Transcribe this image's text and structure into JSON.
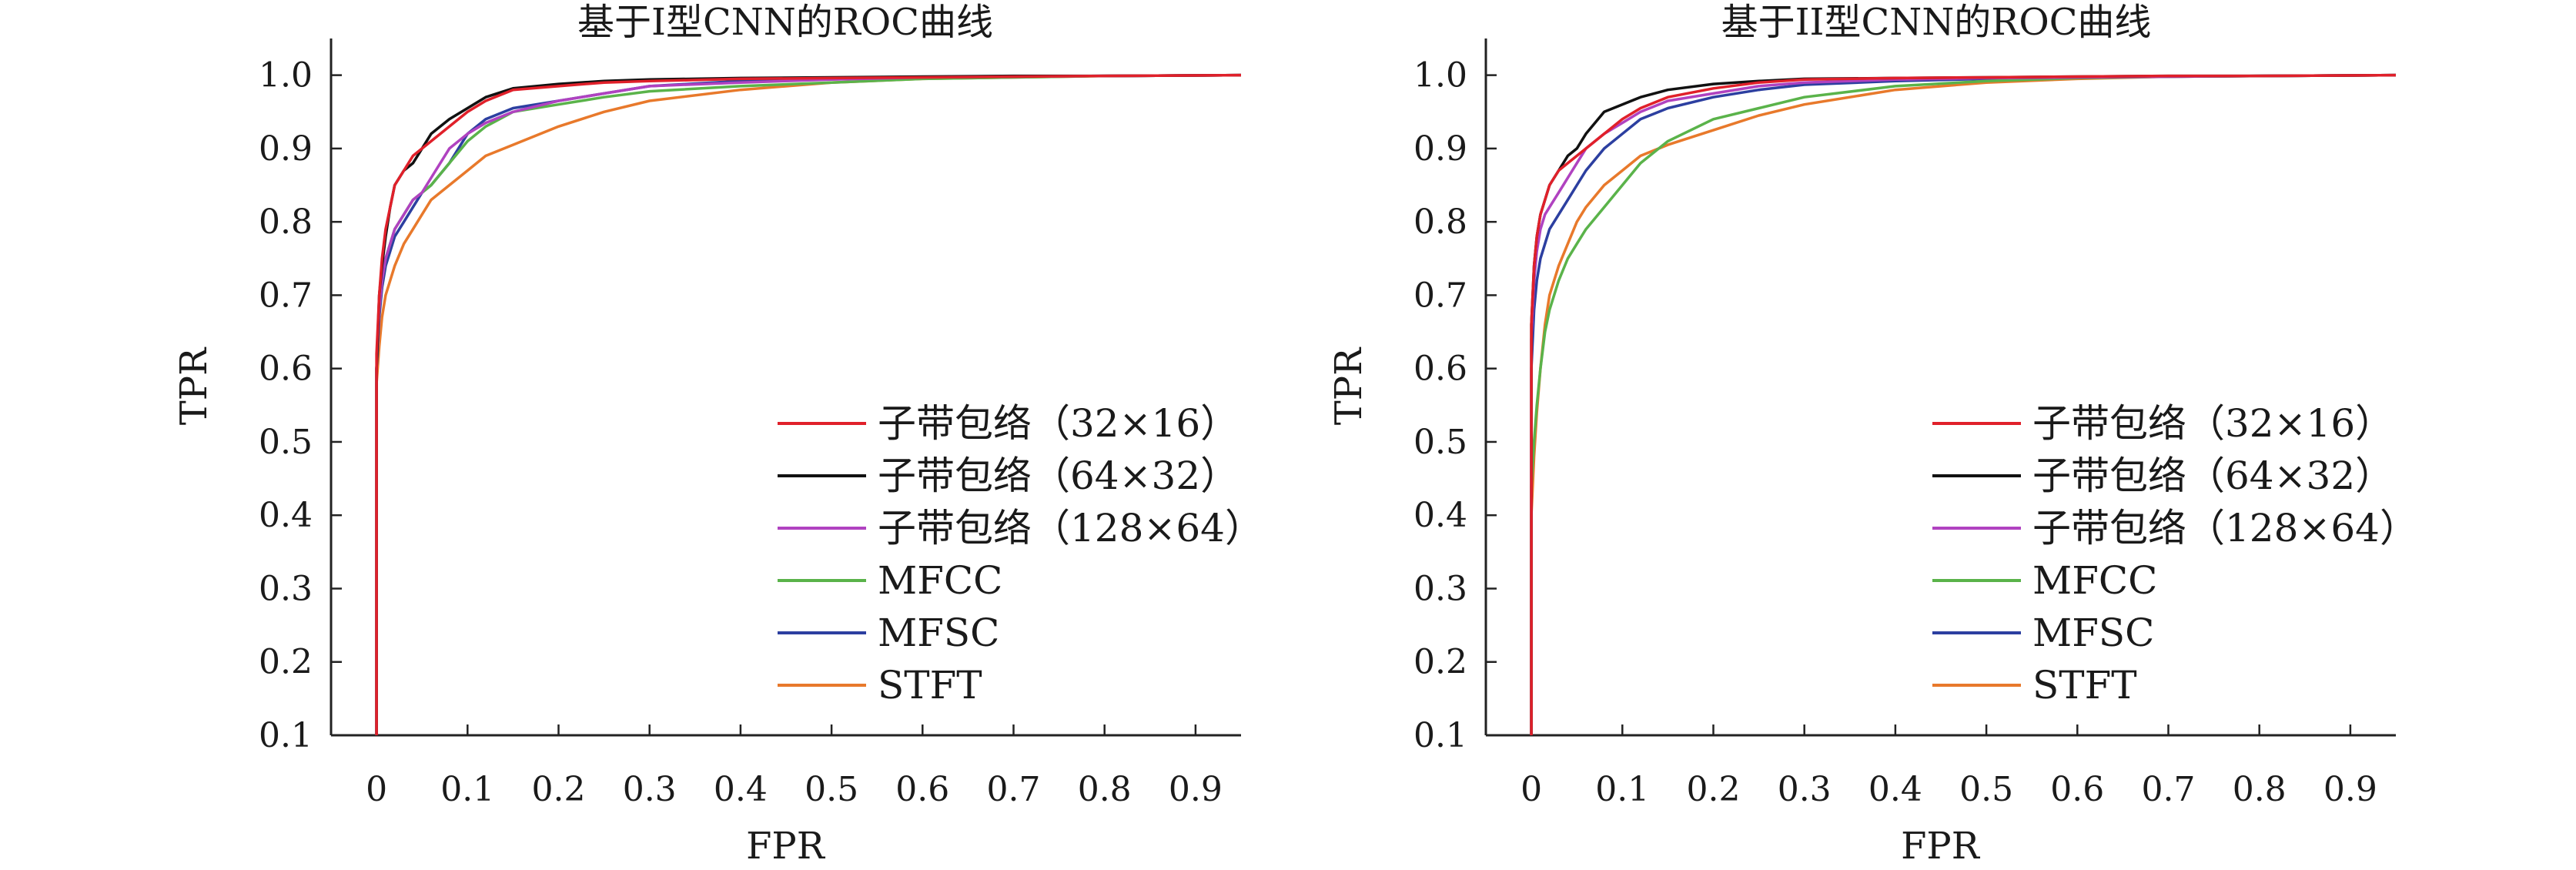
{
  "chart_data": [
    {
      "type": "line",
      "title": "基于I型CNN的ROC曲线",
      "xlabel": "FPR",
      "ylabel": "TPR",
      "xlim": [
        -0.05,
        0.95
      ],
      "ylim": [
        0.1,
        1.05
      ],
      "xticks": [
        "0",
        "0.1",
        "0.2",
        "0.3",
        "0.4",
        "0.5",
        "0.6",
        "0.7",
        "0.8",
        "0.9"
      ],
      "yticks": [
        "0.1",
        "0.2",
        "0.3",
        "0.4",
        "0.5",
        "0.6",
        "0.7",
        "0.8",
        "0.9",
        "1.0"
      ],
      "grid": false,
      "legend_position": "lower-right",
      "series": [
        {
          "name": "子带包络（32×16）",
          "color": "#e0202a",
          "x": [
            0,
            0,
            0.003,
            0.006,
            0.01,
            0.015,
            0.02,
            0.03,
            0.04,
            0.05,
            0.06,
            0.08,
            0.1,
            0.12,
            0.15,
            0.2,
            0.25,
            0.3,
            0.4,
            0.5,
            0.6,
            0.7,
            0.8,
            0.95
          ],
          "y": [
            0.1,
            0.62,
            0.7,
            0.75,
            0.79,
            0.82,
            0.85,
            0.87,
            0.89,
            0.9,
            0.91,
            0.93,
            0.95,
            0.965,
            0.98,
            0.985,
            0.99,
            0.992,
            0.995,
            0.996,
            0.997,
            0.998,
            0.999,
            1.0
          ]
        },
        {
          "name": "子带包络（64×32）",
          "color": "#111111",
          "x": [
            0,
            0,
            0.003,
            0.006,
            0.01,
            0.015,
            0.02,
            0.03,
            0.04,
            0.05,
            0.06,
            0.08,
            0.1,
            0.12,
            0.15,
            0.2,
            0.25,
            0.3,
            0.4,
            0.5,
            0.6,
            0.7,
            0.8,
            0.95
          ],
          "y": [
            0.1,
            0.6,
            0.7,
            0.74,
            0.78,
            0.82,
            0.85,
            0.87,
            0.88,
            0.9,
            0.92,
            0.94,
            0.955,
            0.97,
            0.982,
            0.988,
            0.992,
            0.994,
            0.996,
            0.997,
            0.998,
            0.999,
            0.999,
            1.0
          ]
        },
        {
          "name": "子带包络（128×64）",
          "color": "#b042c0",
          "x": [
            0,
            0,
            0.003,
            0.006,
            0.01,
            0.015,
            0.02,
            0.03,
            0.04,
            0.05,
            0.06,
            0.08,
            0.1,
            0.12,
            0.15,
            0.2,
            0.25,
            0.3,
            0.4,
            0.5,
            0.6,
            0.7,
            0.8,
            0.95
          ],
          "y": [
            0.1,
            0.6,
            0.68,
            0.72,
            0.75,
            0.77,
            0.79,
            0.81,
            0.83,
            0.84,
            0.86,
            0.9,
            0.92,
            0.935,
            0.95,
            0.965,
            0.975,
            0.985,
            0.99,
            0.994,
            0.997,
            0.998,
            0.999,
            1.0
          ]
        },
        {
          "name": "MFCC",
          "color": "#5ab34a",
          "x": [
            0,
            0,
            0.003,
            0.006,
            0.01,
            0.015,
            0.02,
            0.03,
            0.04,
            0.05,
            0.06,
            0.08,
            0.1,
            0.12,
            0.15,
            0.2,
            0.25,
            0.3,
            0.4,
            0.5,
            0.6,
            0.7,
            0.8,
            0.95
          ],
          "y": [
            0.1,
            0.6,
            0.68,
            0.72,
            0.75,
            0.77,
            0.79,
            0.81,
            0.83,
            0.84,
            0.85,
            0.88,
            0.91,
            0.93,
            0.95,
            0.96,
            0.97,
            0.978,
            0.985,
            0.99,
            0.995,
            0.997,
            0.999,
            1.0
          ]
        },
        {
          "name": "MFSC",
          "color": "#2c3fa0",
          "x": [
            0,
            0,
            0.003,
            0.006,
            0.01,
            0.015,
            0.02,
            0.03,
            0.04,
            0.05,
            0.06,
            0.08,
            0.1,
            0.12,
            0.15,
            0.2,
            0.25,
            0.3,
            0.4,
            0.5,
            0.6,
            0.7,
            0.8,
            0.95
          ],
          "y": [
            0.1,
            0.6,
            0.67,
            0.71,
            0.74,
            0.76,
            0.78,
            0.8,
            0.82,
            0.84,
            0.85,
            0.88,
            0.92,
            0.94,
            0.955,
            0.965,
            0.975,
            0.985,
            0.992,
            0.995,
            0.997,
            0.998,
            0.999,
            1.0
          ]
        },
        {
          "name": "STFT",
          "color": "#e8792b",
          "x": [
            0,
            0,
            0.003,
            0.006,
            0.01,
            0.015,
            0.02,
            0.03,
            0.04,
            0.05,
            0.06,
            0.08,
            0.1,
            0.12,
            0.15,
            0.2,
            0.25,
            0.3,
            0.4,
            0.5,
            0.6,
            0.7,
            0.8,
            0.95
          ],
          "y": [
            0.1,
            0.58,
            0.63,
            0.67,
            0.7,
            0.72,
            0.74,
            0.77,
            0.79,
            0.81,
            0.83,
            0.85,
            0.87,
            0.89,
            0.905,
            0.93,
            0.95,
            0.965,
            0.98,
            0.99,
            0.995,
            0.997,
            0.999,
            1.0
          ]
        }
      ]
    },
    {
      "type": "line",
      "title": "基于II型CNN的ROC曲线",
      "xlabel": "FPR",
      "ylabel": "TPR",
      "xlim": [
        -0.05,
        0.95
      ],
      "ylim": [
        0.1,
        1.05
      ],
      "xticks": [
        "0",
        "0.1",
        "0.2",
        "0.3",
        "0.4",
        "0.5",
        "0.6",
        "0.7",
        "0.8",
        "0.9"
      ],
      "yticks": [
        "0.1",
        "0.2",
        "0.3",
        "0.4",
        "0.5",
        "0.6",
        "0.7",
        "0.8",
        "0.9",
        "1.0"
      ],
      "grid": false,
      "legend_position": "lower-right",
      "series": [
        {
          "name": "子带包络（32×16）",
          "color": "#e0202a",
          "x": [
            0,
            0,
            0.003,
            0.006,
            0.01,
            0.015,
            0.02,
            0.03,
            0.04,
            0.05,
            0.06,
            0.08,
            0.1,
            0.12,
            0.15,
            0.2,
            0.25,
            0.3,
            0.4,
            0.5,
            0.6,
            0.7,
            0.8,
            0.95
          ],
          "y": [
            0.1,
            0.66,
            0.74,
            0.78,
            0.81,
            0.83,
            0.85,
            0.87,
            0.88,
            0.89,
            0.9,
            0.92,
            0.94,
            0.955,
            0.97,
            0.982,
            0.99,
            0.994,
            0.996,
            0.997,
            0.998,
            0.999,
            0.999,
            1.0
          ]
        },
        {
          "name": "子带包络（64×32）",
          "color": "#111111",
          "x": [
            0,
            0,
            0.003,
            0.006,
            0.01,
            0.015,
            0.02,
            0.03,
            0.04,
            0.05,
            0.06,
            0.08,
            0.1,
            0.12,
            0.15,
            0.2,
            0.25,
            0.3,
            0.4,
            0.5,
            0.6,
            0.7,
            0.8,
            0.95
          ],
          "y": [
            0.1,
            0.66,
            0.74,
            0.78,
            0.81,
            0.83,
            0.85,
            0.87,
            0.89,
            0.9,
            0.92,
            0.95,
            0.96,
            0.97,
            0.98,
            0.988,
            0.992,
            0.995,
            0.996,
            0.997,
            0.998,
            0.999,
            0.999,
            1.0
          ]
        },
        {
          "name": "子带包络（128×64）",
          "color": "#b042c0",
          "x": [
            0,
            0,
            0.003,
            0.006,
            0.01,
            0.015,
            0.02,
            0.03,
            0.04,
            0.05,
            0.06,
            0.08,
            0.1,
            0.12,
            0.15,
            0.2,
            0.25,
            0.3,
            0.4,
            0.5,
            0.6,
            0.7,
            0.8,
            0.95
          ],
          "y": [
            0.1,
            0.64,
            0.72,
            0.76,
            0.79,
            0.81,
            0.82,
            0.84,
            0.86,
            0.88,
            0.9,
            0.92,
            0.935,
            0.95,
            0.965,
            0.975,
            0.985,
            0.99,
            0.994,
            0.996,
            0.997,
            0.998,
            0.999,
            1.0
          ]
        },
        {
          "name": "MFCC",
          "color": "#5ab34a",
          "x": [
            0,
            0,
            0.003,
            0.006,
            0.01,
            0.015,
            0.02,
            0.03,
            0.04,
            0.05,
            0.06,
            0.08,
            0.1,
            0.12,
            0.15,
            0.2,
            0.25,
            0.3,
            0.4,
            0.5,
            0.6,
            0.7,
            0.8,
            0.95
          ],
          "y": [
            0.1,
            0.44,
            0.5,
            0.55,
            0.6,
            0.65,
            0.68,
            0.72,
            0.75,
            0.77,
            0.79,
            0.82,
            0.85,
            0.88,
            0.91,
            0.94,
            0.955,
            0.97,
            0.985,
            0.992,
            0.996,
            0.998,
            0.999,
            1.0
          ]
        },
        {
          "name": "MFSC",
          "color": "#2c3fa0",
          "x": [
            0,
            0,
            0.003,
            0.006,
            0.01,
            0.015,
            0.02,
            0.03,
            0.04,
            0.05,
            0.06,
            0.08,
            0.1,
            0.12,
            0.15,
            0.2,
            0.25,
            0.3,
            0.4,
            0.5,
            0.6,
            0.7,
            0.8,
            0.95
          ],
          "y": [
            0.1,
            0.6,
            0.68,
            0.72,
            0.75,
            0.77,
            0.79,
            0.81,
            0.83,
            0.85,
            0.87,
            0.9,
            0.92,
            0.94,
            0.955,
            0.97,
            0.98,
            0.987,
            0.992,
            0.995,
            0.997,
            0.998,
            0.999,
            1.0
          ]
        },
        {
          "name": "STFT",
          "color": "#e8792b",
          "x": [
            0,
            0,
            0.003,
            0.006,
            0.01,
            0.015,
            0.02,
            0.03,
            0.04,
            0.05,
            0.06,
            0.08,
            0.1,
            0.12,
            0.15,
            0.2,
            0.25,
            0.3,
            0.4,
            0.5,
            0.6,
            0.7,
            0.8,
            0.95
          ],
          "y": [
            0.1,
            0.4,
            0.48,
            0.54,
            0.6,
            0.66,
            0.7,
            0.74,
            0.77,
            0.8,
            0.82,
            0.85,
            0.87,
            0.89,
            0.905,
            0.925,
            0.945,
            0.96,
            0.98,
            0.99,
            0.995,
            0.998,
            0.999,
            1.0
          ]
        }
      ]
    }
  ]
}
